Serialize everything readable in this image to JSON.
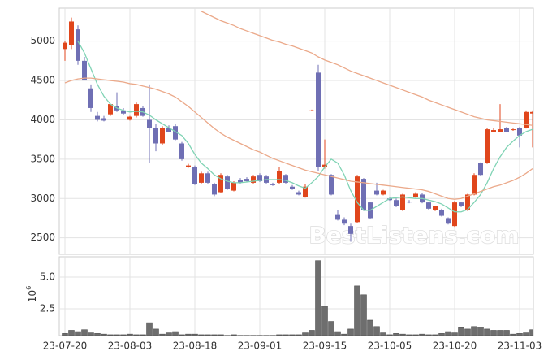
{
  "chart_data": [
    {
      "type": "candlestick",
      "watermark": "BestListens.com",
      "up_color": "#e0461c",
      "down_color": "#6f6fb4",
      "ylim": [
        2290,
        5420
      ],
      "yticks": [
        2500,
        3000,
        3500,
        4000,
        4500,
        5000
      ],
      "grid": true,
      "open": [
        4900,
        4950,
        5150,
        4750,
        4400,
        4050,
        4020,
        4070,
        4180,
        4120,
        4000,
        4050,
        4150,
        4000,
        3900,
        3700,
        3900,
        3920,
        3700,
        3400,
        3400,
        3200,
        3320,
        3180,
        3080,
        3280,
        3100,
        3230,
        3250,
        3200,
        3300,
        3280,
        3180,
        3200,
        3300,
        3150,
        3080,
        3020,
        4110,
        4600,
        3400,
        3300,
        2800,
        2730,
        2650,
        2700,
        3250,
        2950,
        3100,
        3050,
        3000,
        2980,
        2850,
        2960,
        3020,
        3050,
        2950,
        2850,
        2850,
        2750,
        2650,
        2950,
        2850,
        3050,
        3450,
        3450,
        3850,
        3850,
        3900,
        3870,
        3900,
        3900,
        4080
      ],
      "high": [
        5000,
        5300,
        5200,
        4800,
        4450,
        4100,
        4050,
        4200,
        4350,
        4150,
        4050,
        4220,
        4180,
        4450,
        3950,
        3920,
        3930,
        3950,
        3720,
        3440,
        3420,
        3340,
        3340,
        3200,
        3320,
        3300,
        3220,
        3260,
        3270,
        3300,
        3320,
        3300,
        3200,
        3400,
        3310,
        3170,
        3100,
        3180,
        4130,
        4700,
        3750,
        3310,
        2850,
        2760,
        2680,
        3300,
        3260,
        2960,
        3200,
        3110,
        3020,
        3000,
        3060,
        2980,
        3080,
        3070,
        2960,
        2910,
        2870,
        2760,
        2970,
        2960,
        3060,
        3320,
        3460,
        3900,
        3900,
        4200,
        3910,
        3890,
        3910,
        4120,
        4120
      ],
      "low": [
        4750,
        4900,
        4700,
        4500,
        4100,
        3980,
        3980,
        4050,
        4100,
        4060,
        3990,
        4030,
        4040,
        3450,
        3600,
        3680,
        3840,
        3740,
        3480,
        3390,
        3170,
        3190,
        3190,
        3030,
        3070,
        3110,
        3090,
        3190,
        3210,
        3190,
        3210,
        3190,
        3160,
        3180,
        3190,
        3110,
        3040,
        3010,
        4110,
        3350,
        3380,
        3040,
        2720,
        2660,
        2450,
        2690,
        2840,
        2740,
        3040,
        3040,
        2970,
        2890,
        2840,
        2940,
        3010,
        2940,
        2860,
        2840,
        2770,
        2670,
        2640,
        2890,
        2840,
        3040,
        3290,
        3440,
        3840,
        3840,
        3840,
        3860,
        3650,
        3890,
        3650
      ],
      "close": [
        4980,
        5250,
        4750,
        4500,
        4150,
        4000,
        3990,
        4200,
        4120,
        4080,
        4040,
        4200,
        4050,
        3900,
        3700,
        3900,
        3850,
        3750,
        3500,
        3420,
        3180,
        3320,
        3200,
        3050,
        3300,
        3120,
        3200,
        3200,
        3220,
        3280,
        3220,
        3200,
        3170,
        3350,
        3200,
        3120,
        3050,
        3150,
        4120,
        3400,
        3430,
        3050,
        2730,
        2680,
        2550,
        3280,
        2850,
        2750,
        3050,
        3100,
        2980,
        2900,
        3050,
        2950,
        3060,
        2950,
        2870,
        2900,
        2780,
        2680,
        2950,
        2900,
        3050,
        3300,
        3300,
        3880,
        3870,
        3880,
        3850,
        3880,
        3800,
        4100,
        4100
      ],
      "lines": [
        {
          "color": "#7fd3b4",
          "values": [
            null,
            null,
            5000,
            4850,
            4650,
            4450,
            4300,
            4200,
            4150,
            4120,
            4100,
            4110,
            4100,
            4060,
            4000,
            3950,
            3900,
            3850,
            3800,
            3700,
            3560,
            3450,
            3380,
            3300,
            3250,
            3220,
            3200,
            3200,
            3210,
            3220,
            3230,
            3240,
            3240,
            3240,
            3230,
            3200,
            3160,
            3130,
            3200,
            3280,
            3400,
            3500,
            3450,
            3300,
            3100,
            2950,
            2850,
            2850,
            2900,
            2950,
            3000,
            3010,
            3020,
            3010,
            3000,
            3000,
            2980,
            2960,
            2930,
            2880,
            2830,
            2830,
            2860,
            2950,
            3050,
            3200,
            3380,
            3530,
            3650,
            3730,
            3800,
            3850,
            3880
          ]
        },
        {
          "color": "#eba98a",
          "values": [
            4470,
            4500,
            4520,
            4530,
            4530,
            4520,
            4510,
            4500,
            4490,
            4480,
            4460,
            4450,
            4430,
            4410,
            4390,
            4360,
            4330,
            4290,
            4230,
            4170,
            4100,
            4030,
            3960,
            3890,
            3830,
            3780,
            3740,
            3700,
            3660,
            3620,
            3590,
            3550,
            3510,
            3480,
            3450,
            3420,
            3390,
            3360,
            3340,
            3320,
            3300,
            3280,
            3260,
            3240,
            3220,
            3210,
            3200,
            3190,
            3180,
            3170,
            3160,
            3150,
            3140,
            3130,
            3120,
            3110,
            3090,
            3060,
            3030,
            3000,
            2990,
            3000,
            3030,
            3060,
            3090,
            3120,
            3150,
            3170,
            3200,
            3230,
            3270,
            3320,
            3380
          ]
        },
        {
          "color": "#eba98a",
          "values": [
            null,
            null,
            null,
            null,
            null,
            null,
            null,
            null,
            null,
            null,
            null,
            null,
            null,
            null,
            null,
            null,
            null,
            null,
            null,
            null,
            null,
            5380,
            5340,
            5300,
            5260,
            5230,
            5200,
            5160,
            5130,
            5100,
            5070,
            5040,
            5010,
            4990,
            4960,
            4940,
            4910,
            4880,
            4850,
            4800,
            4760,
            4730,
            4700,
            4660,
            4620,
            4590,
            4560,
            4530,
            4500,
            4470,
            4440,
            4410,
            4380,
            4350,
            4320,
            4290,
            4250,
            4220,
            4190,
            4160,
            4130,
            4100,
            4070,
            4040,
            4020,
            4000,
            3990,
            3980,
            3970,
            3960,
            3950,
            3940,
            3930
          ]
        }
      ]
    },
    {
      "type": "bar",
      "color": "#6e6e6e",
      "axis_multiplier": {
        "base": "10",
        "exponent": "6"
      },
      "ylim": [
        0.38,
        6.6
      ],
      "yticks": [
        2.5,
        {
          "value": 5,
          "label": "5.0"
        }
      ],
      "grid": true,
      "categories": [
        "23-07-20",
        null,
        null,
        null,
        null,
        null,
        null,
        null,
        null,
        null,
        "23-08-03",
        null,
        null,
        null,
        null,
        null,
        null,
        null,
        null,
        null,
        "23-08-18",
        null,
        null,
        null,
        null,
        null,
        null,
        null,
        null,
        null,
        "23-09-01",
        null,
        null,
        null,
        null,
        null,
        null,
        null,
        null,
        null,
        "23-09-15",
        null,
        null,
        null,
        null,
        null,
        null,
        null,
        null,
        null,
        "23-10-05",
        null,
        null,
        null,
        null,
        null,
        null,
        null,
        null,
        null,
        "23-10-20",
        null,
        null,
        null,
        null,
        null,
        null,
        null,
        null,
        null,
        "23-11-03",
        null,
        null
      ],
      "values": [
        0.55,
        0.8,
        0.7,
        0.85,
        0.6,
        0.55,
        0.5,
        0.45,
        0.45,
        0.45,
        0.5,
        0.45,
        0.45,
        1.4,
        0.9,
        0.5,
        0.6,
        0.7,
        0.45,
        0.5,
        0.5,
        0.45,
        0.45,
        0.45,
        0.45,
        0.4,
        0.45,
        0.4,
        0.4,
        0.4,
        0.4,
        0.4,
        0.4,
        0.45,
        0.45,
        0.45,
        0.45,
        0.6,
        0.8,
        6.3,
        2.7,
        1.5,
        0.7,
        0.5,
        0.9,
        4.3,
        3.6,
        1.6,
        1.1,
        0.6,
        0.45,
        0.55,
        0.5,
        0.45,
        0.45,
        0.5,
        0.45,
        0.45,
        0.55,
        0.7,
        0.6,
        1.0,
        0.9,
        1.1,
        1.05,
        0.9,
        0.8,
        0.8,
        0.8,
        0.5,
        0.55,
        0.6,
        0.85
      ]
    }
  ]
}
